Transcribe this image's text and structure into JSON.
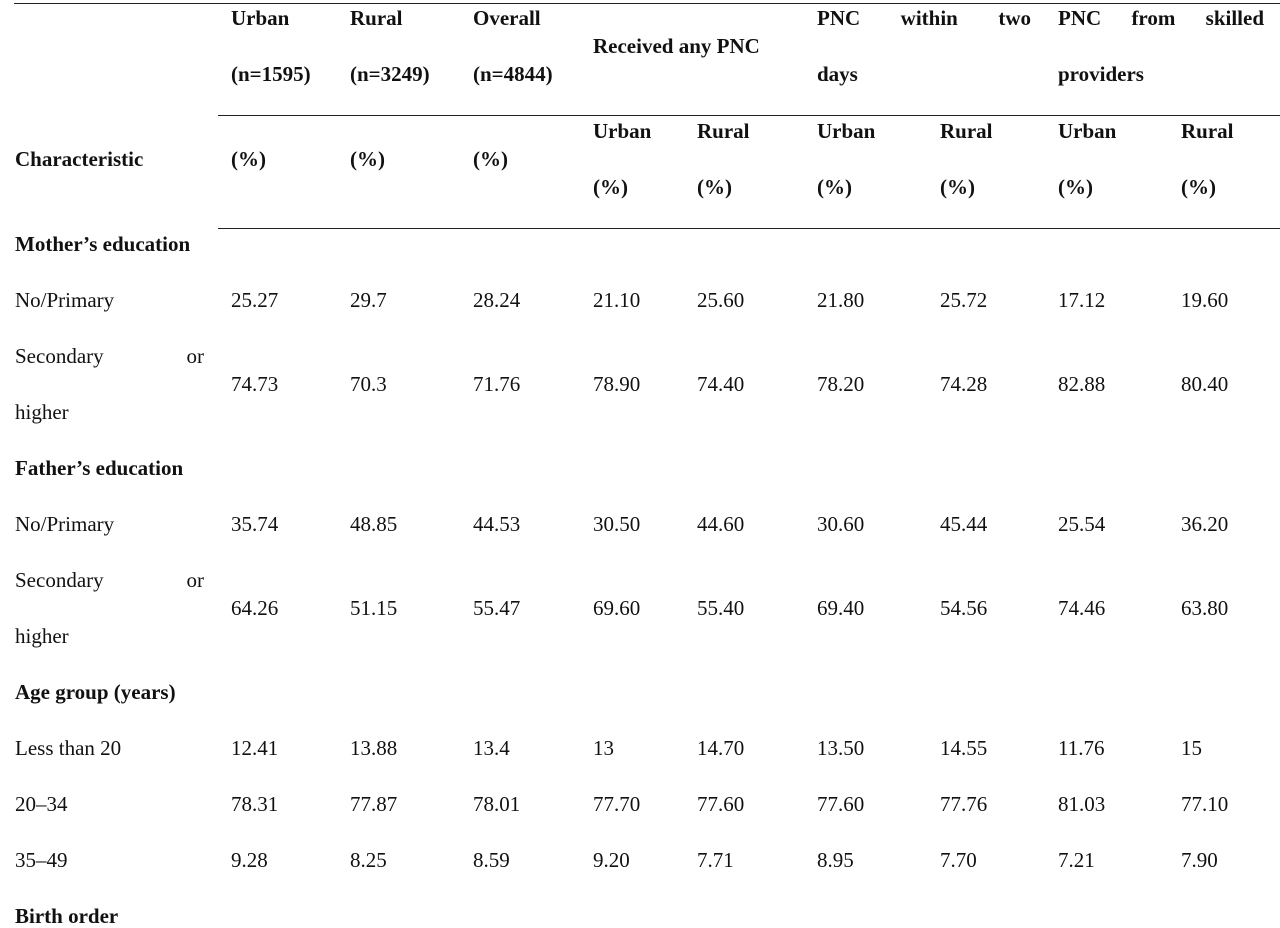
{
  "header": {
    "characteristic": "Characteristic",
    "urban": {
      "label": "Urban",
      "n": "(n=1595)",
      "unit": "(%)"
    },
    "rural": {
      "label": "Rural",
      "n": "(n=3249)",
      "unit": "(%)"
    },
    "overall": {
      "label": "Overall",
      "n": "(n=4844)",
      "unit": "(%)"
    },
    "any_pnc": {
      "label": "Received any PNC",
      "sub_urban": "Urban",
      "sub_rural": "Rural",
      "sub_unit": "(%)"
    },
    "pnc_two_days": {
      "w1": "PNC",
      "w2": "within",
      "w3": "two",
      "line2": "days",
      "sub_urban": "Urban",
      "sub_rural": "Rural",
      "sub_unit": "(%)"
    },
    "pnc_skilled": {
      "w1": "PNC",
      "w2": "from",
      "w3": "skilled",
      "line2": "providers",
      "sub_urban": "Urban",
      "sub_rural": "Rural",
      "sub_unit": "(%)"
    }
  },
  "sections": {
    "mother": {
      "title": "Mother’s education",
      "r1": {
        "label": "No/Primary",
        "v": [
          "25.27",
          "29.7",
          "28.24",
          "21.10",
          "25.60",
          "21.80",
          "25.72",
          "17.12",
          "19.60"
        ]
      },
      "r2": {
        "w1": "Secondary",
        "w2": "or",
        "line2": "higher",
        "v": [
          "74.73",
          "70.3",
          "71.76",
          "78.90",
          "74.40",
          "78.20",
          "74.28",
          "82.88",
          "80.40"
        ]
      }
    },
    "father": {
      "title": "Father’s education",
      "r1": {
        "label": "No/Primary",
        "v": [
          "35.74",
          "48.85",
          "44.53",
          "30.50",
          "44.60",
          "30.60",
          "45.44",
          "25.54",
          "36.20"
        ]
      },
      "r2": {
        "w1": "Secondary",
        "w2": "or",
        "line2": "higher",
        "v": [
          "64.26",
          "51.15",
          "55.47",
          "69.60",
          "55.40",
          "69.40",
          "54.56",
          "74.46",
          "63.80"
        ]
      }
    },
    "age": {
      "title": "Age group (years)",
      "r1": {
        "label": "Less than 20",
        "v": [
          "12.41",
          "13.88",
          "13.4",
          "13",
          "14.70",
          "13.50",
          "14.55",
          "11.76",
          "15"
        ]
      },
      "r2": {
        "label": "20–34",
        "v": [
          "78.31",
          "77.87",
          "78.01",
          "77.70",
          "77.60",
          "77.60",
          "77.76",
          "81.03",
          "77.10"
        ]
      },
      "r3": {
        "label": "35–49",
        "v": [
          "9.28",
          "8.25",
          "8.59",
          "9.20",
          "7.71",
          "8.95",
          "7.70",
          "7.21",
          "7.90"
        ]
      }
    },
    "birth": {
      "title": "Birth order"
    }
  }
}
